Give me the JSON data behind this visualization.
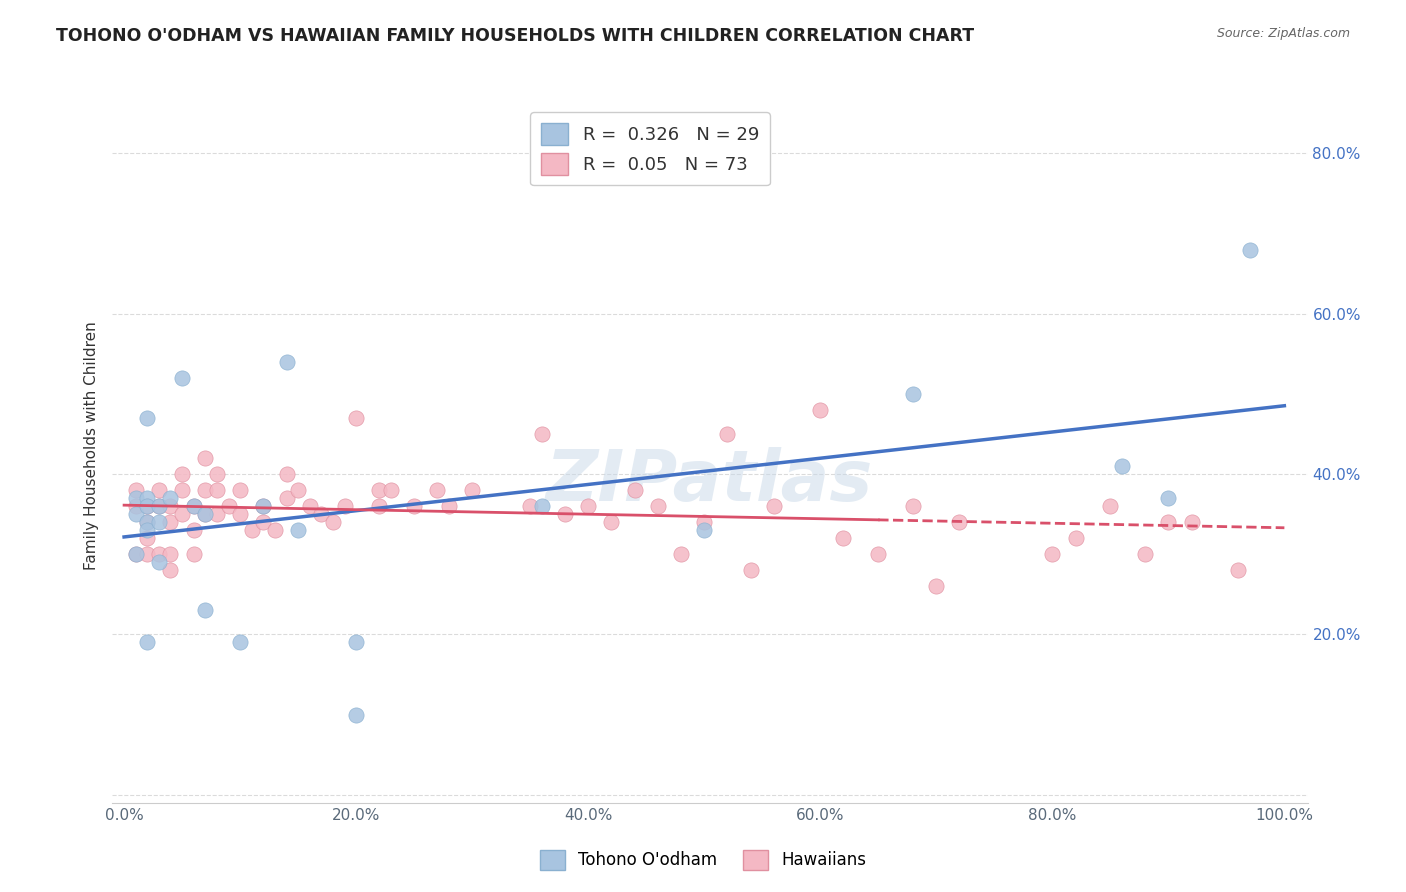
{
  "title": "TOHONO O'ODHAM VS HAWAIIAN FAMILY HOUSEHOLDS WITH CHILDREN CORRELATION CHART",
  "source": "Source: ZipAtlas.com",
  "xlabel": "",
  "ylabel": "Family Households with Children",
  "xlim": [
    0,
    1.0
  ],
  "ylim": [
    0,
    1.0
  ],
  "xticks": [
    0.0,
    0.2,
    0.4,
    0.6,
    0.8,
    1.0
  ],
  "yticks": [
    0.0,
    0.2,
    0.4,
    0.6,
    0.8
  ],
  "xticklabels": [
    "0.0%",
    "20.0%",
    "40.0%",
    "60.0%",
    "80.0%",
    "100.0%"
  ],
  "yticklabels": [
    "",
    "20.0%",
    "40.0%",
    "60.0%",
    "80.0%"
  ],
  "blue_R": 0.326,
  "blue_N": 29,
  "pink_R": 0.05,
  "pink_N": 73,
  "blue_color": "#6baed6",
  "pink_color": "#fc8d59",
  "blue_scatter_color": "#a8c8e8",
  "pink_scatter_color": "#f4a5b0",
  "watermark": "ZIPatlas",
  "blue_points_x": [
    0.01,
    0.01,
    0.01,
    0.02,
    0.02,
    0.02,
    0.02,
    0.02,
    0.02,
    0.03,
    0.03,
    0.03,
    0.04,
    0.05,
    0.06,
    0.07,
    0.07,
    0.1,
    0.12,
    0.14,
    0.15,
    0.2,
    0.2,
    0.36,
    0.5,
    0.68,
    0.86,
    0.9,
    0.97
  ],
  "blue_points_y": [
    0.35,
    0.37,
    0.3,
    0.47,
    0.37,
    0.36,
    0.34,
    0.33,
    0.19,
    0.36,
    0.34,
    0.29,
    0.37,
    0.52,
    0.36,
    0.35,
    0.23,
    0.19,
    0.36,
    0.54,
    0.33,
    0.19,
    0.1,
    0.36,
    0.33,
    0.5,
    0.41,
    0.37,
    0.68
  ],
  "pink_points_x": [
    0.01,
    0.01,
    0.01,
    0.02,
    0.02,
    0.02,
    0.02,
    0.03,
    0.03,
    0.03,
    0.04,
    0.04,
    0.04,
    0.04,
    0.05,
    0.05,
    0.05,
    0.06,
    0.06,
    0.06,
    0.07,
    0.07,
    0.07,
    0.08,
    0.08,
    0.08,
    0.09,
    0.1,
    0.1,
    0.11,
    0.12,
    0.12,
    0.13,
    0.14,
    0.14,
    0.15,
    0.16,
    0.17,
    0.18,
    0.19,
    0.2,
    0.22,
    0.22,
    0.23,
    0.25,
    0.27,
    0.28,
    0.3,
    0.35,
    0.36,
    0.38,
    0.4,
    0.42,
    0.44,
    0.46,
    0.48,
    0.5,
    0.52,
    0.54,
    0.56,
    0.6,
    0.62,
    0.65,
    0.68,
    0.7,
    0.72,
    0.8,
    0.82,
    0.85,
    0.88,
    0.9,
    0.92,
    0.96
  ],
  "pink_points_y": [
    0.3,
    0.38,
    0.36,
    0.34,
    0.36,
    0.32,
    0.3,
    0.38,
    0.36,
    0.3,
    0.36,
    0.34,
    0.3,
    0.28,
    0.4,
    0.38,
    0.35,
    0.36,
    0.33,
    0.3,
    0.42,
    0.38,
    0.35,
    0.4,
    0.38,
    0.35,
    0.36,
    0.38,
    0.35,
    0.33,
    0.36,
    0.34,
    0.33,
    0.4,
    0.37,
    0.38,
    0.36,
    0.35,
    0.34,
    0.36,
    0.47,
    0.38,
    0.36,
    0.38,
    0.36,
    0.38,
    0.36,
    0.38,
    0.36,
    0.45,
    0.35,
    0.36,
    0.34,
    0.38,
    0.36,
    0.3,
    0.34,
    0.45,
    0.28,
    0.36,
    0.48,
    0.32,
    0.3,
    0.36,
    0.26,
    0.34,
    0.3,
    0.32,
    0.36,
    0.3,
    0.34,
    0.34,
    0.28
  ]
}
